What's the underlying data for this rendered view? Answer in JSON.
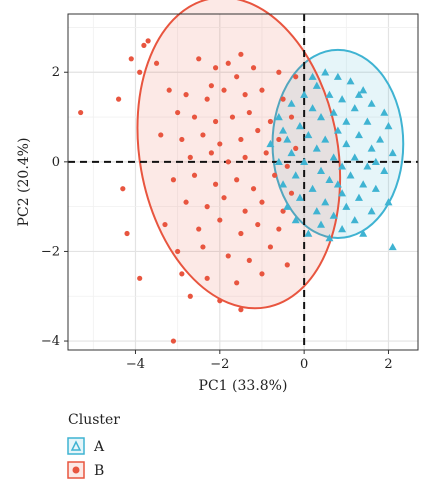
{
  "chart_data": {
    "type": "scatter",
    "xlabel": "PC1 (33.8%)",
    "ylabel": "PC2 (20.4%)",
    "xlim": [
      -5.6,
      2.7
    ],
    "ylim": [
      -4.2,
      3.3
    ],
    "x_ticks": [
      -4,
      -2,
      0,
      2
    ],
    "y_ticks": [
      -4,
      -2,
      0,
      2
    ],
    "x_tick_labels": [
      "−4",
      "−2",
      "0",
      "2"
    ],
    "y_tick_labels": [
      "−4",
      "−2",
      "0",
      "2"
    ],
    "grid": true,
    "reference_lines": {
      "x": 0,
      "y": 0
    },
    "legend": {
      "title": "Cluster",
      "position": "bottom-left",
      "entries": [
        "A",
        "B"
      ]
    },
    "series": [
      {
        "name": "A",
        "marker": "triangle",
        "color": "#3fb3d2",
        "ellipse": {
          "cx": 0.8,
          "cy": 0.4,
          "rx": 1.55,
          "ry": 2.1,
          "angle_deg": 0
        },
        "points": [
          [
            0.5,
            2.0
          ],
          [
            0.8,
            1.9
          ],
          [
            1.1,
            1.8
          ],
          [
            0.3,
            1.7
          ],
          [
            1.4,
            1.6
          ],
          [
            0.0,
            1.5
          ],
          [
            0.6,
            1.5
          ],
          [
            0.9,
            1.4
          ],
          [
            1.6,
            1.3
          ],
          [
            -0.3,
            1.3
          ],
          [
            0.2,
            1.2
          ],
          [
            1.2,
            1.2
          ],
          [
            1.9,
            1.1
          ],
          [
            0.7,
            1.1
          ],
          [
            -0.6,
            1.0
          ],
          [
            0.4,
            1.0
          ],
          [
            1.0,
            0.9
          ],
          [
            1.5,
            0.9
          ],
          [
            -0.1,
            0.8
          ],
          [
            2.0,
            0.8
          ],
          [
            0.8,
            0.7
          ],
          [
            -0.5,
            0.7
          ],
          [
            1.3,
            0.6
          ],
          [
            0.1,
            0.6
          ],
          [
            1.8,
            0.5
          ],
          [
            0.5,
            0.5
          ],
          [
            -0.8,
            0.4
          ],
          [
            1.0,
            0.4
          ],
          [
            0.3,
            0.3
          ],
          [
            1.6,
            0.3
          ],
          [
            -0.3,
            0.2
          ],
          [
            2.1,
            0.2
          ],
          [
            0.7,
            0.1
          ],
          [
            1.2,
            0.1
          ],
          [
            -0.6,
            0.0
          ],
          [
            0.0,
            0.0
          ],
          [
            0.9,
            -0.1
          ],
          [
            1.5,
            -0.1
          ],
          [
            0.4,
            -0.2
          ],
          [
            1.9,
            -0.2
          ],
          [
            -0.2,
            -0.3
          ],
          [
            1.1,
            -0.3
          ],
          [
            0.6,
            -0.4
          ],
          [
            -0.5,
            -0.5
          ],
          [
            1.4,
            -0.5
          ],
          [
            0.2,
            -0.6
          ],
          [
            1.7,
            -0.6
          ],
          [
            0.9,
            -0.7
          ],
          [
            -0.1,
            -0.8
          ],
          [
            1.3,
            -0.8
          ],
          [
            0.5,
            -0.9
          ],
          [
            2.0,
            -0.9
          ],
          [
            -0.4,
            -1.0
          ],
          [
            1.0,
            -1.0
          ],
          [
            0.3,
            -1.1
          ],
          [
            1.6,
            -1.1
          ],
          [
            0.7,
            -1.2
          ],
          [
            -0.2,
            -1.3
          ],
          [
            1.2,
            -1.3
          ],
          [
            0.4,
            -1.4
          ],
          [
            0.9,
            -1.5
          ],
          [
            0.1,
            -1.6
          ],
          [
            1.4,
            -1.6
          ],
          [
            0.6,
            -1.7
          ],
          [
            2.1,
            -1.9
          ],
          [
            0.2,
            1.9
          ],
          [
            1.3,
            1.5
          ],
          [
            -0.4,
            0.5
          ],
          [
            1.7,
            0.0
          ],
          [
            0.8,
            -0.5
          ]
        ]
      },
      {
        "name": "B",
        "marker": "circle",
        "color": "#e8553f",
        "ellipse": {
          "cx": -1.55,
          "cy": 0.2,
          "rx": 2.35,
          "ry": 3.5,
          "angle_deg": -10
        },
        "points": [
          [
            -3.7,
            2.7
          ],
          [
            -3.8,
            2.6
          ],
          [
            -4.1,
            2.3
          ],
          [
            -3.5,
            2.2
          ],
          [
            -3.9,
            2.0
          ],
          [
            -2.5,
            2.3
          ],
          [
            -2.1,
            2.1
          ],
          [
            -1.8,
            2.2
          ],
          [
            -1.5,
            2.4
          ],
          [
            -1.2,
            2.1
          ],
          [
            -0.6,
            2.0
          ],
          [
            -0.2,
            1.9
          ],
          [
            -5.3,
            1.1
          ],
          [
            -4.4,
            1.4
          ],
          [
            -3.2,
            1.6
          ],
          [
            -2.8,
            1.5
          ],
          [
            -2.3,
            1.4
          ],
          [
            -1.9,
            1.6
          ],
          [
            -1.4,
            1.5
          ],
          [
            -1.0,
            1.6
          ],
          [
            -0.5,
            1.4
          ],
          [
            -3.0,
            1.1
          ],
          [
            -2.6,
            1.0
          ],
          [
            -2.1,
            0.9
          ],
          [
            -1.7,
            1.0
          ],
          [
            -1.3,
            1.1
          ],
          [
            -0.8,
            0.9
          ],
          [
            -0.3,
            1.0
          ],
          [
            -3.4,
            0.6
          ],
          [
            -2.9,
            0.5
          ],
          [
            -2.4,
            0.6
          ],
          [
            -2.0,
            0.4
          ],
          [
            -1.5,
            0.5
          ],
          [
            -1.1,
            0.7
          ],
          [
            -0.6,
            0.5
          ],
          [
            -0.2,
            0.3
          ],
          [
            -2.7,
            0.1
          ],
          [
            -2.2,
            0.2
          ],
          [
            -1.8,
            0.0
          ],
          [
            -1.4,
            0.1
          ],
          [
            -0.9,
            0.2
          ],
          [
            -0.4,
            -0.1
          ],
          [
            -4.3,
            -0.6
          ],
          [
            -3.1,
            -0.4
          ],
          [
            -2.6,
            -0.3
          ],
          [
            -2.1,
            -0.5
          ],
          [
            -1.6,
            -0.4
          ],
          [
            -1.2,
            -0.6
          ],
          [
            -0.7,
            -0.3
          ],
          [
            -0.3,
            -0.7
          ],
          [
            -2.8,
            -0.9
          ],
          [
            -2.3,
            -1.0
          ],
          [
            -1.9,
            -0.8
          ],
          [
            -1.4,
            -1.1
          ],
          [
            -1.0,
            -0.9
          ],
          [
            -0.5,
            -1.1
          ],
          [
            -3.3,
            -1.4
          ],
          [
            -2.5,
            -1.5
          ],
          [
            -2.0,
            -1.3
          ],
          [
            -1.5,
            -1.6
          ],
          [
            -1.1,
            -1.4
          ],
          [
            -0.6,
            -1.5
          ],
          [
            -3.0,
            -2.0
          ],
          [
            -2.4,
            -1.9
          ],
          [
            -1.8,
            -2.1
          ],
          [
            -1.3,
            -2.2
          ],
          [
            -0.8,
            -1.9
          ],
          [
            -0.4,
            -2.3
          ],
          [
            -2.9,
            -2.5
          ],
          [
            -2.3,
            -2.6
          ],
          [
            -1.6,
            -2.7
          ],
          [
            -1.0,
            -2.5
          ],
          [
            -2.7,
            -3.0
          ],
          [
            -2.0,
            -3.1
          ],
          [
            -1.5,
            -3.3
          ],
          [
            -3.1,
            -4.0
          ],
          [
            -3.9,
            -2.6
          ],
          [
            -4.2,
            -1.6
          ],
          [
            -2.2,
            1.7
          ],
          [
            -1.6,
            1.9
          ]
        ]
      }
    ]
  }
}
